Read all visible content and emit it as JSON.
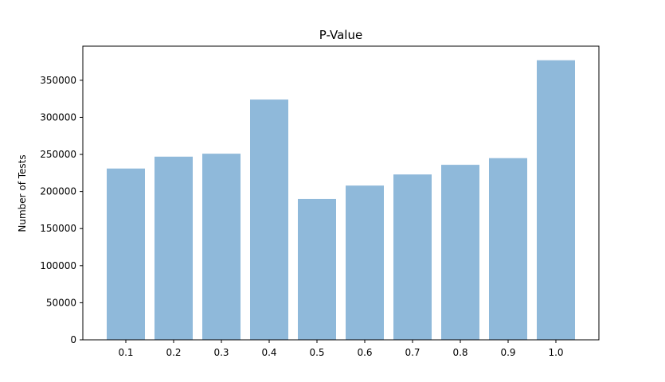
{
  "chart_data": {
    "type": "bar",
    "title": "P-Value",
    "xlabel": "",
    "ylabel": "Number of Tests",
    "categories": [
      "0.1",
      "0.2",
      "0.3",
      "0.4",
      "0.5",
      "0.6",
      "0.7",
      "0.8",
      "0.9",
      "1.0"
    ],
    "values": [
      231000,
      247000,
      251000,
      324000,
      190000,
      208000,
      223000,
      236000,
      245000,
      377000
    ],
    "ylim": [
      0,
      396000
    ],
    "yticks": [
      0,
      50000,
      100000,
      150000,
      200000,
      250000,
      300000,
      350000
    ],
    "ytick_labels": [
      "0",
      "50000",
      "100000",
      "150000",
      "200000",
      "250000",
      "300000",
      "350000"
    ],
    "grid": false,
    "bar_color": "#8fb9da"
  }
}
